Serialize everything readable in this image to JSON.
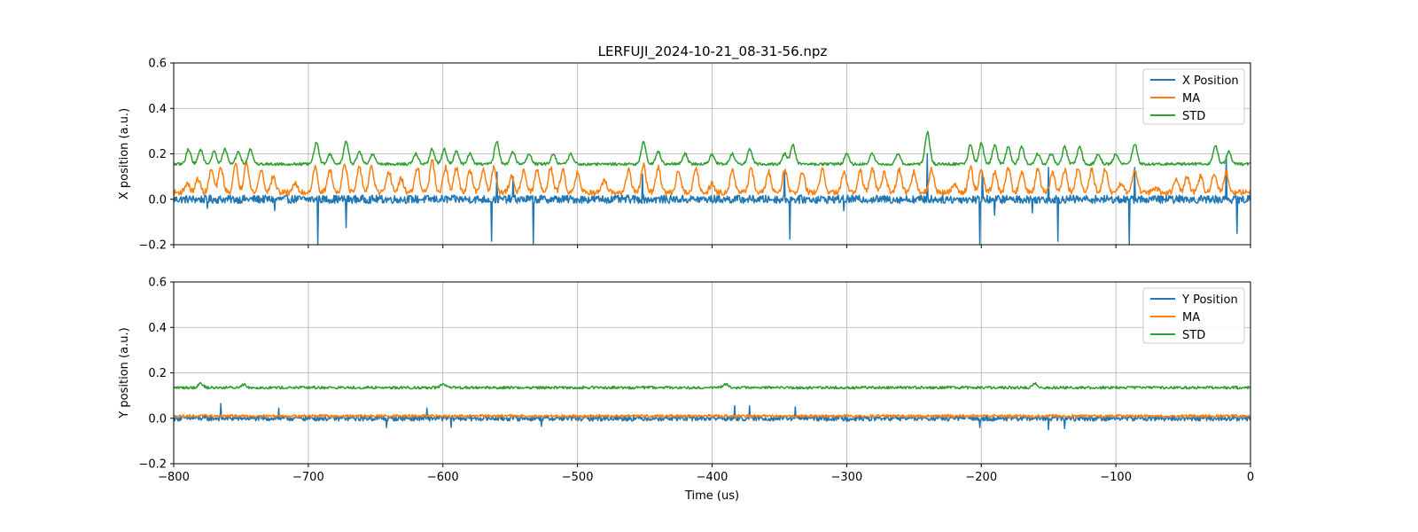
{
  "title": "LERFUJI_2024-10-21_08-31-56.npz",
  "colors": {
    "position": "#1f77b4",
    "ma": "#ff7f0e",
    "std": "#2ca02c",
    "grid": "#b0b0b0"
  },
  "chart_data": [
    {
      "type": "line",
      "ylabel": "X position (a.u.)",
      "xlabel": "",
      "xlim": [
        -800,
        0
      ],
      "ylim": [
        -0.2,
        0.6
      ],
      "xticks": [
        -800,
        -700,
        -600,
        -500,
        -400,
        -300,
        -200,
        -100,
        0
      ],
      "xtick_labels": [
        "−800",
        "−700",
        "−600",
        "−500",
        "−400",
        "−300",
        "−200",
        "−100",
        "0"
      ],
      "yticks": [
        -0.2,
        0.0,
        0.2,
        0.4,
        0.6
      ],
      "ytick_labels": [
        "−0.2",
        "0.0",
        "0.2",
        "0.4",
        "0.6"
      ],
      "grid": true,
      "legend_position": "top-right",
      "show_xtick_labels": false,
      "series": [
        {
          "name": "X Position",
          "color": "#1f77b4",
          "baseline": 0.0,
          "noise": 0.018,
          "spikes": [
            {
              "x": -693,
              "y": -0.2
            },
            {
              "x": -672,
              "y": -0.125
            },
            {
              "x": -564,
              "y": -0.185
            },
            {
              "x": -533,
              "y": -0.195
            },
            {
              "x": -560,
              "y": 0.12
            },
            {
              "x": -548,
              "y": 0.1
            },
            {
              "x": -452,
              "y": -0.165
            },
            {
              "x": -452,
              "y": 0.11
            },
            {
              "x": -342,
              "y": -0.175
            },
            {
              "x": -346,
              "y": 0.12
            },
            {
              "x": -240,
              "y": 0.2
            },
            {
              "x": -201,
              "y": -0.2
            },
            {
              "x": -199,
              "y": 0.12
            },
            {
              "x": -190,
              "y": -0.07
            },
            {
              "x": -162,
              "y": -0.06
            },
            {
              "x": -143,
              "y": -0.185
            },
            {
              "x": -90,
              "y": -0.2
            },
            {
              "x": -86,
              "y": 0.14
            },
            {
              "x": -10,
              "y": -0.15
            },
            {
              "x": -18,
              "y": 0.19
            },
            {
              "x": -150,
              "y": 0.14
            },
            {
              "x": -775,
              "y": -0.04
            },
            {
              "x": -725,
              "y": -0.05
            },
            {
              "x": -302,
              "y": -0.05
            }
          ]
        },
        {
          "name": "MA",
          "color": "#ff7f0e",
          "baseline": 0.03,
          "noise": 0.012,
          "peaks": [
            {
              "x": -790,
              "y": 0.07
            },
            {
              "x": -782,
              "y": 0.09
            },
            {
              "x": -772,
              "y": 0.13
            },
            {
              "x": -765,
              "y": 0.14
            },
            {
              "x": -754,
              "y": 0.15
            },
            {
              "x": -746,
              "y": 0.17
            },
            {
              "x": -735,
              "y": 0.13
            },
            {
              "x": -726,
              "y": 0.1
            },
            {
              "x": -710,
              "y": 0.07
            },
            {
              "x": -695,
              "y": 0.14
            },
            {
              "x": -684,
              "y": 0.13
            },
            {
              "x": -673,
              "y": 0.16
            },
            {
              "x": -662,
              "y": 0.14
            },
            {
              "x": -653,
              "y": 0.14
            },
            {
              "x": -640,
              "y": 0.12
            },
            {
              "x": -631,
              "y": 0.09
            },
            {
              "x": -619,
              "y": 0.14
            },
            {
              "x": -608,
              "y": 0.17
            },
            {
              "x": -598,
              "y": 0.14
            },
            {
              "x": -590,
              "y": 0.14
            },
            {
              "x": -580,
              "y": 0.13
            },
            {
              "x": -570,
              "y": 0.13
            },
            {
              "x": -562,
              "y": 0.14
            },
            {
              "x": -549,
              "y": 0.1
            },
            {
              "x": -540,
              "y": 0.13
            },
            {
              "x": -530,
              "y": 0.13
            },
            {
              "x": -520,
              "y": 0.14
            },
            {
              "x": -511,
              "y": 0.13
            },
            {
              "x": -500,
              "y": 0.12
            },
            {
              "x": -480,
              "y": 0.08
            },
            {
              "x": -462,
              "y": 0.13
            },
            {
              "x": -451,
              "y": 0.15
            },
            {
              "x": -440,
              "y": 0.14
            },
            {
              "x": -425,
              "y": 0.13
            },
            {
              "x": -412,
              "y": 0.14
            },
            {
              "x": -400,
              "y": 0.07
            },
            {
              "x": -385,
              "y": 0.13
            },
            {
              "x": -371,
              "y": 0.14
            },
            {
              "x": -358,
              "y": 0.12
            },
            {
              "x": -346,
              "y": 0.13
            },
            {
              "x": -333,
              "y": 0.12
            },
            {
              "x": -318,
              "y": 0.13
            },
            {
              "x": -302,
              "y": 0.12
            },
            {
              "x": -290,
              "y": 0.13
            },
            {
              "x": -281,
              "y": 0.14
            },
            {
              "x": -272,
              "y": 0.12
            },
            {
              "x": -261,
              "y": 0.13
            },
            {
              "x": -250,
              "y": 0.12
            },
            {
              "x": -237,
              "y": 0.13
            },
            {
              "x": -220,
              "y": 0.07
            },
            {
              "x": -208,
              "y": 0.14
            },
            {
              "x": -200,
              "y": 0.13
            },
            {
              "x": -190,
              "y": 0.12
            },
            {
              "x": -180,
              "y": 0.14
            },
            {
              "x": -170,
              "y": 0.12
            },
            {
              "x": -158,
              "y": 0.13
            },
            {
              "x": -147,
              "y": 0.12
            },
            {
              "x": -138,
              "y": 0.13
            },
            {
              "x": -128,
              "y": 0.14
            },
            {
              "x": -118,
              "y": 0.13
            },
            {
              "x": -108,
              "y": 0.13
            },
            {
              "x": -96,
              "y": 0.07
            },
            {
              "x": -86,
              "y": 0.13
            },
            {
              "x": -70,
              "y": 0.05
            },
            {
              "x": -55,
              "y": 0.09
            },
            {
              "x": -47,
              "y": 0.1
            },
            {
              "x": -37,
              "y": 0.1
            },
            {
              "x": -27,
              "y": 0.11
            },
            {
              "x": -18,
              "y": 0.12
            }
          ]
        },
        {
          "name": "STD",
          "color": "#2ca02c",
          "baseline": 0.155,
          "noise": 0.006,
          "peaks": [
            {
              "x": -789,
              "y": 0.22
            },
            {
              "x": -780,
              "y": 0.22
            },
            {
              "x": -770,
              "y": 0.21
            },
            {
              "x": -762,
              "y": 0.22
            },
            {
              "x": -752,
              "y": 0.21
            },
            {
              "x": -743,
              "y": 0.22
            },
            {
              "x": -694,
              "y": 0.25
            },
            {
              "x": -684,
              "y": 0.2
            },
            {
              "x": -672,
              "y": 0.255
            },
            {
              "x": -662,
              "y": 0.21
            },
            {
              "x": -652,
              "y": 0.2
            },
            {
              "x": -620,
              "y": 0.2
            },
            {
              "x": -608,
              "y": 0.22
            },
            {
              "x": -599,
              "y": 0.22
            },
            {
              "x": -590,
              "y": 0.21
            },
            {
              "x": -580,
              "y": 0.2
            },
            {
              "x": -560,
              "y": 0.255
            },
            {
              "x": -548,
              "y": 0.21
            },
            {
              "x": -536,
              "y": 0.2
            },
            {
              "x": -518,
              "y": 0.2
            },
            {
              "x": -505,
              "y": 0.2
            },
            {
              "x": -451,
              "y": 0.25
            },
            {
              "x": -440,
              "y": 0.21
            },
            {
              "x": -420,
              "y": 0.2
            },
            {
              "x": -400,
              "y": 0.2
            },
            {
              "x": -385,
              "y": 0.2
            },
            {
              "x": -372,
              "y": 0.22
            },
            {
              "x": -346,
              "y": 0.2
            },
            {
              "x": -340,
              "y": 0.24
            },
            {
              "x": -300,
              "y": 0.2
            },
            {
              "x": -281,
              "y": 0.2
            },
            {
              "x": -262,
              "y": 0.2
            },
            {
              "x": -240,
              "y": 0.295
            },
            {
              "x": -208,
              "y": 0.24
            },
            {
              "x": -200,
              "y": 0.245
            },
            {
              "x": -190,
              "y": 0.24
            },
            {
              "x": -180,
              "y": 0.23
            },
            {
              "x": -170,
              "y": 0.23
            },
            {
              "x": -158,
              "y": 0.2
            },
            {
              "x": -148,
              "y": 0.2
            },
            {
              "x": -138,
              "y": 0.23
            },
            {
              "x": -127,
              "y": 0.235
            },
            {
              "x": -113,
              "y": 0.2
            },
            {
              "x": -100,
              "y": 0.2
            },
            {
              "x": -86,
              "y": 0.245
            },
            {
              "x": -26,
              "y": 0.235
            },
            {
              "x": -16,
              "y": 0.21
            }
          ]
        }
      ]
    },
    {
      "type": "line",
      "ylabel": "Y position (a.u.)",
      "xlabel": "Time (us)",
      "xlim": [
        -800,
        0
      ],
      "ylim": [
        -0.2,
        0.6
      ],
      "xticks": [
        -800,
        -700,
        -600,
        -500,
        -400,
        -300,
        -200,
        -100,
        0
      ],
      "xtick_labels": [
        "−800",
        "−700",
        "−600",
        "−500",
        "−400",
        "−300",
        "−200",
        "−100",
        "0"
      ],
      "yticks": [
        -0.2,
        0.0,
        0.2,
        0.4,
        0.6
      ],
      "ytick_labels": [
        "−0.2",
        "0.0",
        "0.2",
        "0.4",
        "0.6"
      ],
      "grid": true,
      "legend_position": "top-right",
      "show_xtick_labels": true,
      "series": [
        {
          "name": "Y Position",
          "color": "#1f77b4",
          "baseline": 0.0,
          "noise": 0.012,
          "spikes": [
            {
              "x": -765,
              "y": 0.065
            },
            {
              "x": -722,
              "y": 0.045
            },
            {
              "x": -642,
              "y": -0.04
            },
            {
              "x": -612,
              "y": 0.045
            },
            {
              "x": -594,
              "y": -0.04
            },
            {
              "x": -527,
              "y": -0.035
            },
            {
              "x": -383,
              "y": 0.055
            },
            {
              "x": -372,
              "y": 0.055
            },
            {
              "x": -338,
              "y": 0.05
            },
            {
              "x": -201,
              "y": -0.04
            },
            {
              "x": -150,
              "y": -0.05
            },
            {
              "x": -138,
              "y": -0.045
            }
          ]
        },
        {
          "name": "MA",
          "color": "#ff7f0e",
          "baseline": 0.01,
          "noise": 0.006,
          "peaks": []
        },
        {
          "name": "STD",
          "color": "#2ca02c",
          "baseline": 0.135,
          "noise": 0.006,
          "peaks": [
            {
              "x": -780,
              "y": 0.155
            },
            {
              "x": -748,
              "y": 0.15
            },
            {
              "x": -600,
              "y": 0.15
            },
            {
              "x": -390,
              "y": 0.15
            },
            {
              "x": -160,
              "y": 0.155
            }
          ]
        }
      ]
    }
  ]
}
